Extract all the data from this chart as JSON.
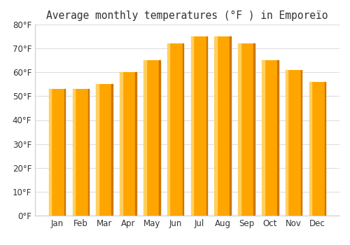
{
  "title": "Average monthly temperatures (°F ) in Emporeïo",
  "months": [
    "Jan",
    "Feb",
    "Mar",
    "Apr",
    "May",
    "Jun",
    "Jul",
    "Aug",
    "Sep",
    "Oct",
    "Nov",
    "Dec"
  ],
  "values": [
    53,
    53,
    55,
    60,
    65,
    72,
    75,
    75,
    72,
    65,
    61,
    56
  ],
  "bar_color_main": "#FFA500",
  "bar_color_light": "#FFD060",
  "bar_color_dark": "#CC7700",
  "ylim": [
    0,
    80
  ],
  "yticks": [
    0,
    10,
    20,
    30,
    40,
    50,
    60,
    70,
    80
  ],
  "background_color": "#ffffff",
  "grid_color": "#dddddd",
  "title_fontsize": 10.5,
  "tick_fontsize": 8.5,
  "bar_width": 0.7
}
